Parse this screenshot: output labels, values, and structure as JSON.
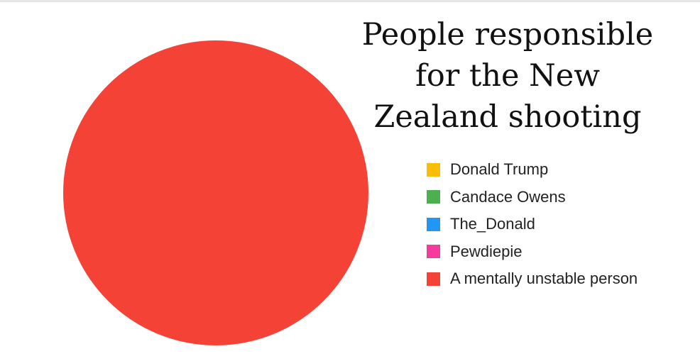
{
  "chart_data": {
    "type": "pie",
    "title_lines": [
      "People responsible",
      "for the New",
      "Zealand shooting"
    ],
    "labels": [
      "Donald Trump",
      "Candace Owens",
      "The_Donald",
      "Pewdiepie",
      "A mentally unstable person"
    ],
    "values": [
      0,
      0,
      0,
      0,
      100
    ],
    "colors": [
      "#fbbc05",
      "#4caf50",
      "#2196f3",
      "#f53a9c",
      "#f44336"
    ],
    "legend_position": "right"
  }
}
